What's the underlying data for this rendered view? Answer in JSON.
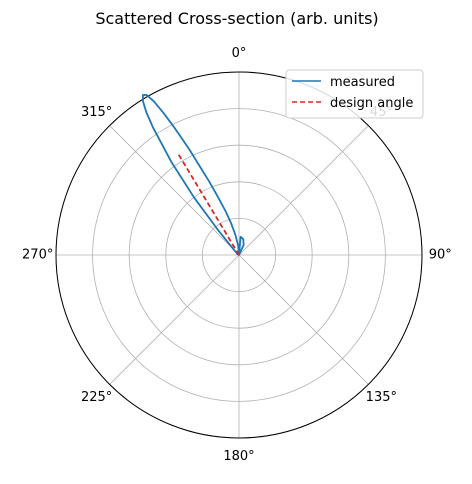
{
  "chart_data": {
    "type": "polar-line",
    "title": "Scattered Cross-section (arb. units)",
    "theta_direction": "clockwise",
    "theta_zero": "top",
    "theta_ticks": [
      0,
      45,
      90,
      135,
      180,
      225,
      270,
      315
    ],
    "theta_tick_labels": [
      "0°",
      "45°",
      "90°",
      "135°",
      "180°",
      "225°",
      "270°",
      "315°"
    ],
    "r_grid_count": 5,
    "grid": true,
    "legend_position": "top-right",
    "series": [
      {
        "name": "measured",
        "color": "#1f77b4",
        "style": "solid",
        "theta_deg": [
          0,
          5,
          15,
          25,
          40,
          60,
          120,
          200,
          300,
          320,
          322,
          324,
          326,
          327,
          328,
          329,
          330,
          331,
          332,
          333,
          334,
          335,
          336,
          338,
          340,
          343,
          346,
          350,
          355,
          0
        ],
        "r": [
          0,
          0.1,
          0.09,
          0.06,
          0,
          0,
          0,
          0,
          0.01,
          0.18,
          0.4,
          0.63,
          0.84,
          0.93,
          0.99,
          1.02,
          1.01,
          0.96,
          0.88,
          0.79,
          0.7,
          0.62,
          0.54,
          0.43,
          0.34,
          0.25,
          0.18,
          0.11,
          0.05,
          0
        ]
      },
      {
        "name": "design angle",
        "color": "#d62728",
        "style": "dashed",
        "theta_deg": [
          329,
          329
        ],
        "r": [
          0,
          0.65
        ]
      }
    ]
  }
}
